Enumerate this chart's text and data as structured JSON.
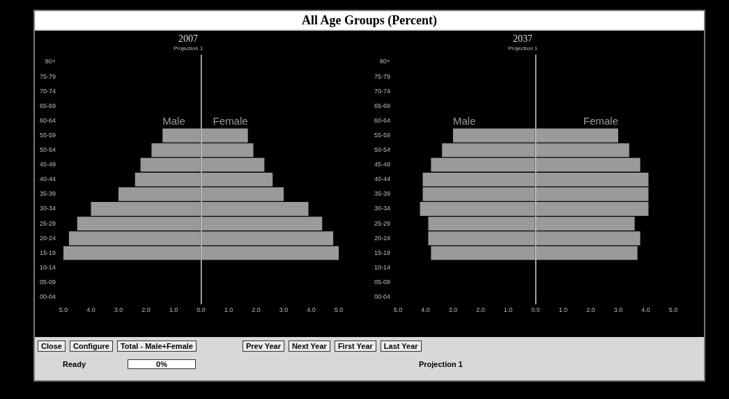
{
  "chart_data": [
    {
      "type": "other",
      "title": "All Age Groups (Percent)"
    },
    {
      "type": "bar",
      "title": "2007",
      "subtitle": "Projection 1",
      "orientation": "horizontal",
      "stacked": true,
      "xlim": [
        -5,
        5
      ],
      "xticks": [
        {
          "value": -5,
          "label": "5.0"
        },
        {
          "value": -4,
          "label": "4.0"
        },
        {
          "value": -3,
          "label": "3.0"
        },
        {
          "value": -2,
          "label": "2.0"
        },
        {
          "value": -1,
          "label": "1.0"
        },
        {
          "value": 0,
          "label": "0.0"
        },
        {
          "value": 1,
          "label": "1.0"
        },
        {
          "value": 2,
          "label": "2.0"
        },
        {
          "value": 3,
          "label": "3.0"
        },
        {
          "value": 4,
          "label": "4.0"
        },
        {
          "value": 5,
          "label": "5.0"
        }
      ],
      "categories": [
        "80+",
        "75-79",
        "70-74",
        "65-69",
        "60-64",
        "55-59",
        "50-54",
        "45-49",
        "40-44",
        "35-39",
        "30-34",
        "25-29",
        "20-24",
        "15-19",
        "10-14",
        "05-09",
        "00-04"
      ],
      "series": [
        {
          "name": "Male",
          "color": "#9a9a9a",
          "values": [
            null,
            null,
            null,
            null,
            null,
            -1.4,
            -1.8,
            -2.2,
            -2.4,
            -3.0,
            -4.0,
            -4.5,
            -4.8,
            -5.0,
            null,
            null,
            null
          ]
        },
        {
          "name": "Female",
          "color": "#9a9a9a",
          "values": [
            null,
            null,
            null,
            null,
            null,
            1.7,
            1.9,
            2.3,
            2.6,
            3.0,
            3.9,
            4.4,
            4.8,
            5.0,
            null,
            null,
            null
          ]
        }
      ]
    },
    {
      "type": "bar",
      "title": "2037",
      "subtitle": "Projection 1",
      "orientation": "horizontal",
      "stacked": true,
      "xlim": [
        -5,
        5
      ],
      "xticks": [
        {
          "value": -5,
          "label": "5.0"
        },
        {
          "value": -4,
          "label": "4.0"
        },
        {
          "value": -3,
          "label": "3.0"
        },
        {
          "value": -2,
          "label": "2.0"
        },
        {
          "value": -1,
          "label": "1.0"
        },
        {
          "value": 0,
          "label": "0.0"
        },
        {
          "value": 1,
          "label": "1.0"
        },
        {
          "value": 2,
          "label": "2.0"
        },
        {
          "value": 3,
          "label": "3.0"
        },
        {
          "value": 4,
          "label": "4.0"
        },
        {
          "value": 5,
          "label": "5.0"
        }
      ],
      "categories": [
        "80+",
        "75-79",
        "70-74",
        "65-69",
        "60-64",
        "55-59",
        "50-54",
        "45-49",
        "40-44",
        "35-39",
        "30-34",
        "25-29",
        "20-24",
        "15-19",
        "10-14",
        "05-09",
        "00-04"
      ],
      "series": [
        {
          "name": "Male",
          "color": "#9a9a9a",
          "values": [
            null,
            null,
            null,
            null,
            null,
            -3.0,
            -3.4,
            -3.8,
            -4.1,
            -4.1,
            -4.2,
            -3.9,
            -3.9,
            -3.8,
            null,
            null,
            null
          ]
        },
        {
          "name": "Female",
          "color": "#9a9a9a",
          "values": [
            null,
            null,
            null,
            null,
            null,
            3.0,
            3.4,
            3.8,
            4.1,
            4.1,
            4.1,
            3.6,
            3.8,
            3.7,
            null,
            null,
            null
          ]
        }
      ]
    },
    {
      "type": "other",
      "annotations": [
        "Close",
        "Configure",
        "Total - Male+Female",
        "Prev Year",
        "Next Year",
        "First Year",
        "Last Year",
        "Ready",
        "0%",
        "Projection 1"
      ]
    }
  ]
}
